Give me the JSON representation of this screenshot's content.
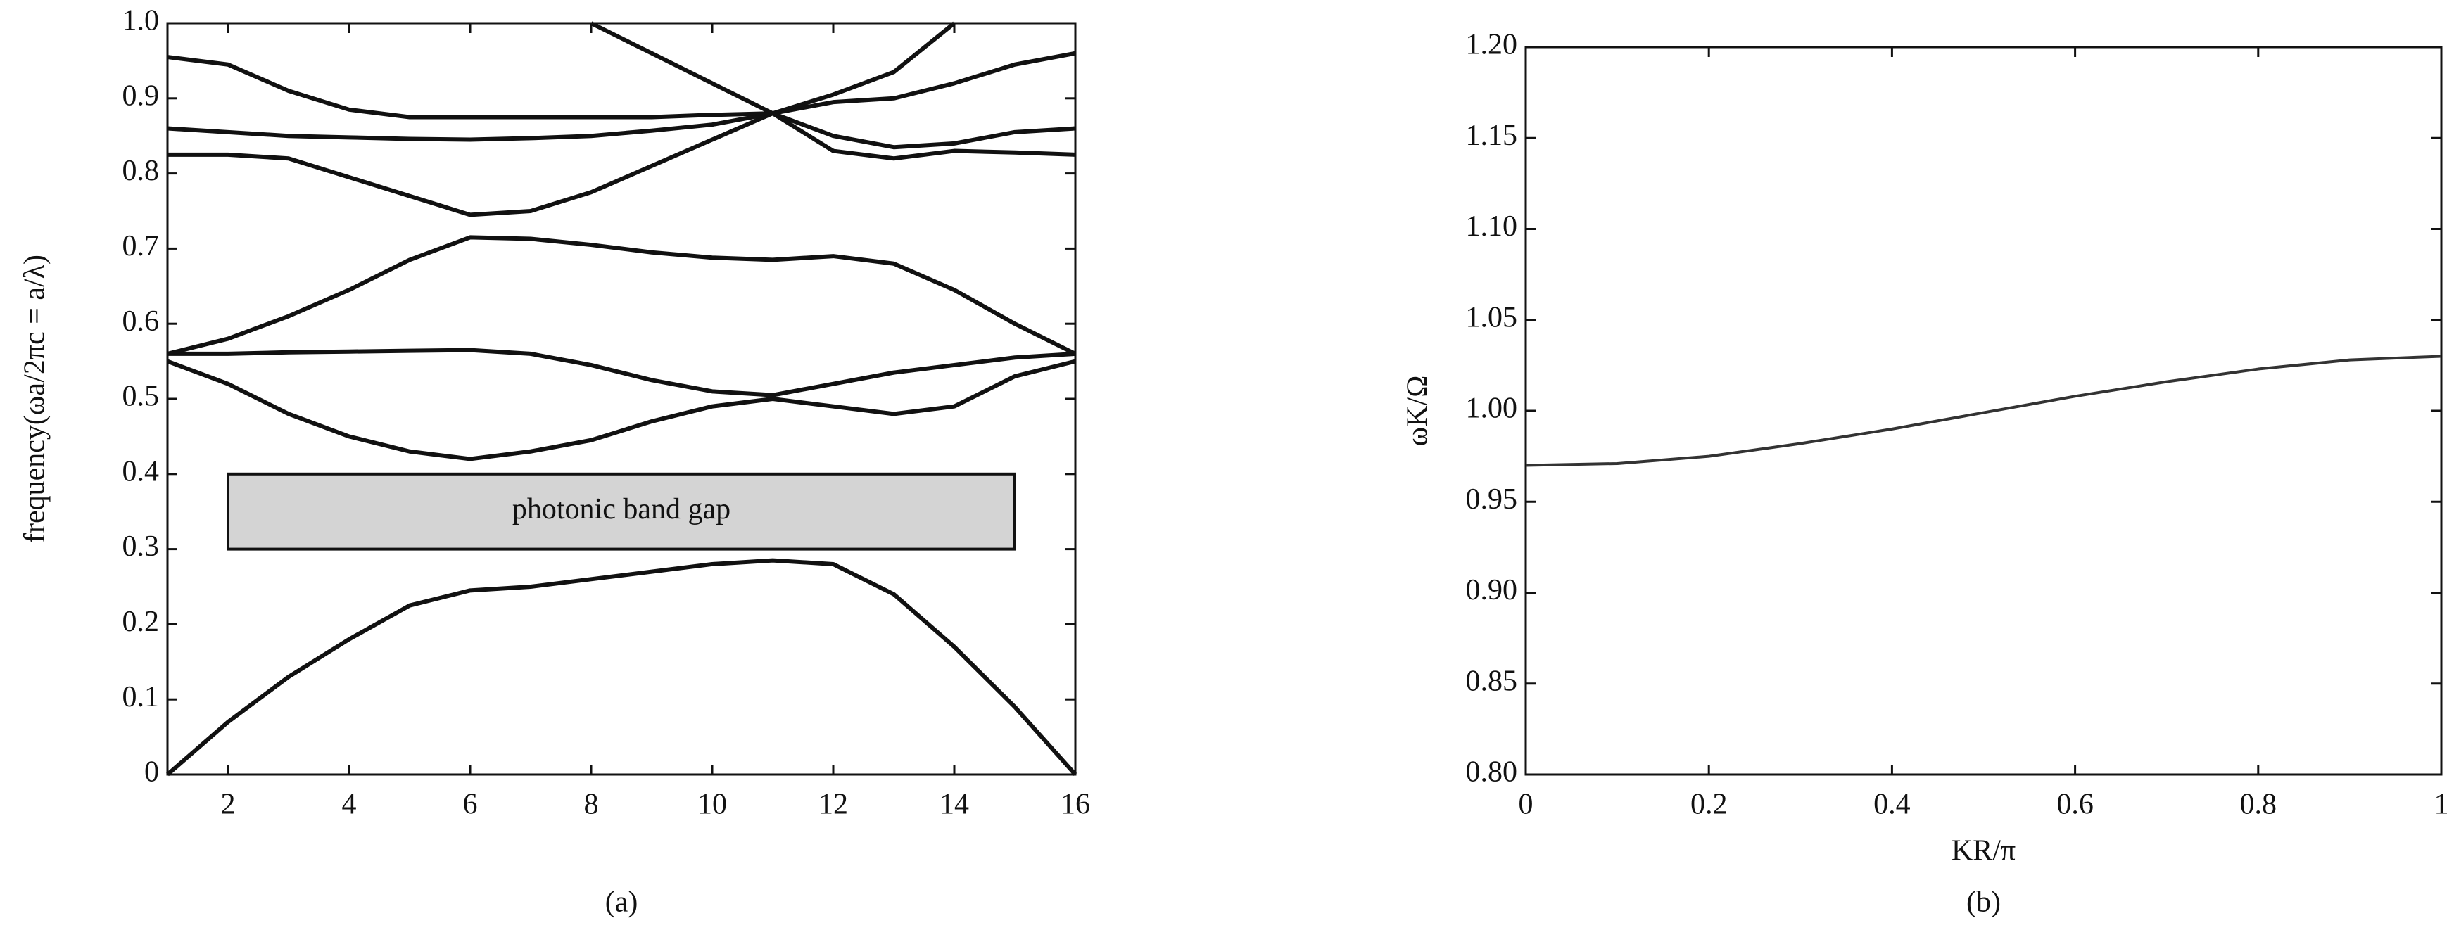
{
  "chart_data": [
    {
      "type": "line",
      "caption": "(a)",
      "ylabel": "frequency(ωa/2πc = a/λ)",
      "x": [
        1,
        2,
        3,
        4,
        5,
        6,
        7,
        8,
        9,
        10,
        11,
        12,
        13,
        14,
        15,
        16
      ],
      "xlim": [
        1,
        16
      ],
      "xticks": [
        2,
        4,
        6,
        8,
        10,
        12,
        14,
        16
      ],
      "ylim": [
        0,
        1
      ],
      "yticks": [
        0,
        0.1,
        0.2,
        0.3,
        0.4,
        0.5,
        0.6,
        0.7,
        0.8,
        0.9,
        {
          "value": 1,
          "label": "1.0"
        }
      ],
      "series": [
        {
          "color": "#111",
          "values": [
            0,
            0.07,
            0.13,
            0.18,
            0.225,
            0.245,
            0.25,
            0.26,
            0.27,
            0.28,
            0.285,
            0.28,
            0.24,
            0.17,
            0.09,
            0
          ]
        },
        {
          "color": "#111",
          "values": [
            0.55,
            0.52,
            0.48,
            0.45,
            0.43,
            0.42,
            0.43,
            0.445,
            0.47,
            0.49,
            0.5,
            0.49,
            0.48,
            0.49,
            0.53,
            0.55
          ]
        },
        {
          "color": "#111",
          "values": [
            0.56,
            0.56,
            0.562,
            0.563,
            0.564,
            0.565,
            0.56,
            0.545,
            0.525,
            0.51,
            0.505,
            0.52,
            0.535,
            0.545,
            0.555,
            0.56
          ]
        },
        {
          "color": "#111",
          "values": [
            0.56,
            0.58,
            0.61,
            0.645,
            0.685,
            0.715,
            0.713,
            0.705,
            0.695,
            0.688,
            0.685,
            0.69,
            0.68,
            0.645,
            0.6,
            0.56
          ]
        },
        {
          "color": "#111",
          "values": [
            0.825,
            0.825,
            0.82,
            0.795,
            0.77,
            0.745,
            0.75,
            0.775,
            0.81,
            0.845,
            0.88,
            0.905,
            0.935,
            1.0,
            null,
            null
          ]
        },
        {
          "color": "#111",
          "values": [
            0.86,
            0.855,
            0.85,
            0.848,
            0.846,
            0.845,
            0.847,
            0.85,
            0.857,
            0.865,
            0.88,
            0.85,
            0.835,
            0.84,
            0.855,
            0.86
          ]
        },
        {
          "color": "#111",
          "values": [
            0.955,
            0.945,
            0.91,
            0.885,
            0.875,
            0.875,
            0.875,
            0.875,
            0.875,
            0.878,
            0.88,
            0.895,
            0.9,
            0.92,
            0.945,
            0.96
          ]
        },
        {
          "color": "#111",
          "values": [
            null,
            null,
            null,
            null,
            null,
            null,
            null,
            1.0,
            0.96,
            0.92,
            0.88,
            0.83,
            0.82,
            0.83,
            0.828,
            0.825
          ]
        }
      ],
      "annotation": {
        "text": "photonic band gap",
        "x": [
          2,
          15
        ],
        "y": [
          0.3,
          0.4
        ]
      }
    },
    {
      "type": "line",
      "caption": "(b)",
      "ylabel": "ωK/Ω",
      "xlabel": "KR/π",
      "x": [
        0,
        0.1,
        0.2,
        0.3,
        0.4,
        0.5,
        0.6,
        0.7,
        0.8,
        0.9,
        1
      ],
      "xlim": [
        0,
        1
      ],
      "xticks": [
        0,
        0.2,
        0.4,
        0.6,
        0.8,
        1
      ],
      "ylim": [
        0.8,
        1.2
      ],
      "yticks": [
        {
          "value": 0.8,
          "label": "0.80"
        },
        0.85,
        {
          "value": 0.9,
          "label": "0.90"
        },
        0.95,
        {
          "value": 1,
          "label": "1.00"
        },
        1.05,
        {
          "value": 1.1,
          "label": "1.10"
        },
        1.15,
        {
          "value": 1.2,
          "label": "1.20"
        }
      ],
      "series": [
        {
          "color": "#333",
          "values": [
            0.97,
            0.971,
            0.975,
            0.982,
            0.99,
            0.999,
            1.008,
            1.016,
            1.023,
            1.028,
            1.03
          ]
        }
      ]
    }
  ]
}
